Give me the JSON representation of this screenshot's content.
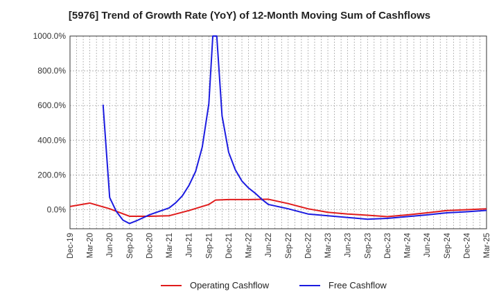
{
  "title": "[5976]  Trend of Growth Rate (YoY) of 12-Month Moving Sum of Cashflows",
  "colors": {
    "operating": "#e01b1b",
    "free": "#1b1be0",
    "grid": "#9a9a9a",
    "axis": "#333333"
  },
  "chart_data": {
    "type": "line",
    "title": "[5976]  Trend of Growth Rate (YoY) of 12-Month Moving Sum of Cashflows",
    "xlabel": "",
    "ylabel": "",
    "x_ticks": [
      "Dec-19",
      "Mar-20",
      "Jun-20",
      "Sep-20",
      "Dec-20",
      "Mar-21",
      "Jun-21",
      "Sep-21",
      "Dec-21",
      "Mar-22",
      "Jun-22",
      "Sep-22",
      "Dec-22",
      "Mar-23",
      "Jun-23",
      "Sep-23",
      "Dec-23",
      "Mar-24",
      "Jun-24",
      "Sep-24",
      "Dec-24",
      "Mar-25"
    ],
    "y_ticks": [
      "0.0%",
      "200.0%",
      "400.0%",
      "600.0%",
      "800.0%",
      "1000.0%"
    ],
    "ylim": [
      -110,
      1000
    ],
    "grid": true,
    "legend_position": "bottom",
    "series": [
      {
        "name": "Operating Cashflow",
        "color": "#e01b1b",
        "points": [
          [
            0,
            18
          ],
          [
            3,
            38
          ],
          [
            6,
            5
          ],
          [
            9,
            -38
          ],
          [
            12,
            -38
          ],
          [
            15,
            -35
          ],
          [
            18,
            -5
          ],
          [
            21,
            30
          ],
          [
            22,
            55
          ],
          [
            24,
            58
          ],
          [
            27,
            58
          ],
          [
            30,
            60
          ],
          [
            33,
            35
          ],
          [
            36,
            5
          ],
          [
            39,
            -15
          ],
          [
            42,
            -25
          ],
          [
            45,
            -32
          ],
          [
            48,
            -40
          ],
          [
            51,
            -30
          ],
          [
            54,
            -18
          ],
          [
            57,
            -5
          ],
          [
            60,
            0
          ],
          [
            63,
            5
          ],
          [
            66,
            8
          ]
        ]
      },
      {
        "name": "Free Cashflow",
        "color": "#1b1be0",
        "points": [
          [
            5,
            605
          ],
          [
            6,
            70
          ],
          [
            7,
            -10
          ],
          [
            8,
            -60
          ],
          [
            9,
            -80
          ],
          [
            10,
            -65
          ],
          [
            12,
            -30
          ],
          [
            15,
            10
          ],
          [
            16,
            40
          ],
          [
            17,
            80
          ],
          [
            18,
            140
          ],
          [
            19,
            220
          ],
          [
            20,
            360
          ],
          [
            21,
            610
          ],
          [
            21.6,
            1000
          ],
          [
            22.2,
            1000
          ],
          [
            23,
            540
          ],
          [
            24,
            330
          ],
          [
            25,
            230
          ],
          [
            26,
            165
          ],
          [
            27,
            125
          ],
          [
            28,
            95
          ],
          [
            29,
            60
          ],
          [
            30,
            30
          ],
          [
            33,
            5
          ],
          [
            36,
            -25
          ],
          [
            39,
            -35
          ],
          [
            42,
            -45
          ],
          [
            45,
            -55
          ],
          [
            48,
            -50
          ],
          [
            51,
            -40
          ],
          [
            54,
            -30
          ],
          [
            57,
            -18
          ],
          [
            60,
            -12
          ],
          [
            63,
            -4
          ]
        ]
      }
    ]
  }
}
